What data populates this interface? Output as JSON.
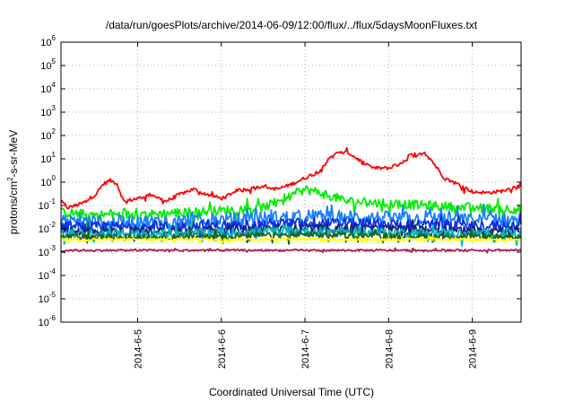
{
  "chart_data": {
    "type": "line",
    "title": "/data/run/goesPlots/archive/2014-06-09/12:00/flux/../flux/5daysMoonFluxes.txt",
    "xlabel": "Coordinated Universal Time (UTC)",
    "ylabel": "protons/cm2-s-sr-MeV",
    "ylabel_parts": {
      "pre": "protons/cm",
      "sup": "2",
      "post": "-s-sr-MeV"
    },
    "y_scale": "log",
    "ylim": [
      1e-06,
      1000000.0
    ],
    "y_ticks": [
      {
        "value": 1e-06,
        "base": "10",
        "exp": "-6"
      },
      {
        "value": 1e-05,
        "base": "10",
        "exp": "-5"
      },
      {
        "value": 0.0001,
        "base": "10",
        "exp": "-4"
      },
      {
        "value": 0.001,
        "base": "10",
        "exp": "-3"
      },
      {
        "value": 0.01,
        "base": "10",
        "exp": "-2"
      },
      {
        "value": 0.1,
        "base": "10",
        "exp": "-1"
      },
      {
        "value": 1,
        "base": "10",
        "exp": "0"
      },
      {
        "value": 10,
        "base": "10",
        "exp": "1"
      },
      {
        "value": 100,
        "base": "10",
        "exp": "2"
      },
      {
        "value": 1000,
        "base": "10",
        "exp": "3"
      },
      {
        "value": 10000,
        "base": "10",
        "exp": "4"
      },
      {
        "value": 100000,
        "base": "10",
        "exp": "5"
      },
      {
        "value": 1000000,
        "base": "10",
        "exp": "6"
      }
    ],
    "xlim": [
      "2014-06-04 02:00",
      "2014-06-09 14:00"
    ],
    "x_ticks": [
      "2014-6-5",
      "2014-6-6",
      "2014-6-7",
      "2014-6-8",
      "2014-6-9"
    ],
    "x_tick_dates": [
      "2014-06-05 00:00",
      "2014-06-06 00:00",
      "2014-06-07 00:00",
      "2014-06-08 00:00",
      "2014-06-09 00:00"
    ],
    "grid": true,
    "legend": "none",
    "series": [
      {
        "color": "#ff0000",
        "noise": 0.15,
        "x": [
          "2014-06-04 02:00",
          "2014-06-04 04:00",
          "2014-06-04 08:00",
          "2014-06-04 12:00",
          "2014-06-04 14:00",
          "2014-06-04 16:00",
          "2014-06-04 18:00",
          "2014-06-04 20:00",
          "2014-06-05 00:00",
          "2014-06-05 04:00",
          "2014-06-05 08:00",
          "2014-06-05 12:00",
          "2014-06-05 16:00",
          "2014-06-05 20:00",
          "2014-06-06 00:00",
          "2014-06-06 04:00",
          "2014-06-06 08:00",
          "2014-06-06 12:00",
          "2014-06-06 16:00",
          "2014-06-06 20:00",
          "2014-06-07 00:00",
          "2014-06-07 04:00",
          "2014-06-07 08:00",
          "2014-06-07 12:00",
          "2014-06-07 16:00",
          "2014-06-07 18:00",
          "2014-06-07 20:00",
          "2014-06-08 00:00",
          "2014-06-08 04:00",
          "2014-06-08 06:00",
          "2014-06-08 08:00",
          "2014-06-08 10:00",
          "2014-06-08 12:00",
          "2014-06-08 16:00",
          "2014-06-08 20:00",
          "2014-06-09 00:00",
          "2014-06-09 04:00",
          "2014-06-09 08:00",
          "2014-06-09 12:00",
          "2014-06-09 14:00"
        ],
        "y": [
          0.15,
          0.08,
          0.12,
          0.3,
          0.8,
          1.2,
          0.9,
          0.15,
          0.2,
          0.3,
          0.15,
          0.3,
          0.5,
          0.3,
          0.2,
          0.4,
          0.5,
          0.7,
          0.5,
          0.8,
          1.5,
          3,
          15,
          20,
          8,
          5,
          4,
          4,
          6,
          15,
          12,
          20,
          10,
          1.5,
          0.8,
          0.4,
          0.35,
          0.4,
          0.6,
          0.7
        ]
      },
      {
        "color": "#00ee00",
        "noise": 0.4,
        "x": [
          "2014-06-04 02:00",
          "2014-06-04 12:00",
          "2014-06-05 00:00",
          "2014-06-05 12:00",
          "2014-06-06 00:00",
          "2014-06-06 12:00",
          "2014-06-06 18:00",
          "2014-06-07 00:00",
          "2014-06-07 06:00",
          "2014-06-07 12:00",
          "2014-06-08 00:00",
          "2014-06-08 12:00",
          "2014-06-09 00:00",
          "2014-06-09 14:00"
        ],
        "y": [
          0.05,
          0.04,
          0.04,
          0.05,
          0.06,
          0.08,
          0.2,
          0.5,
          0.3,
          0.15,
          0.12,
          0.1,
          0.08,
          0.07
        ]
      },
      {
        "color": "#1a7fff",
        "noise": 0.55,
        "x": [
          "2014-06-04 02:00",
          "2014-06-05 00:00",
          "2014-06-06 00:00",
          "2014-06-07 00:00",
          "2014-06-08 00:00",
          "2014-06-09 00:00",
          "2014-06-09 14:00"
        ],
        "y": [
          0.02,
          0.02,
          0.025,
          0.035,
          0.03,
          0.025,
          0.025
        ]
      },
      {
        "color": "#0a2fe0",
        "noise": 0.45,
        "x": [
          "2014-06-04 02:00",
          "2014-06-05 00:00",
          "2014-06-06 00:00",
          "2014-06-07 00:00",
          "2014-06-08 00:00",
          "2014-06-09 00:00",
          "2014-06-09 14:00"
        ],
        "y": [
          0.012,
          0.012,
          0.014,
          0.018,
          0.016,
          0.014,
          0.013
        ]
      },
      {
        "color": "#1a1f7a",
        "noise": 0.35,
        "x": [
          "2014-06-04 02:00",
          "2014-06-05 00:00",
          "2014-06-06 00:00",
          "2014-06-07 00:00",
          "2014-06-08 00:00",
          "2014-06-09 00:00",
          "2014-06-09 14:00"
        ],
        "y": [
          0.008,
          0.008,
          0.009,
          0.011,
          0.01,
          0.009,
          0.009
        ]
      },
      {
        "color": "#00b8b8",
        "noise": 0.4,
        "x": [
          "2014-06-04 02:00",
          "2014-06-05 00:00",
          "2014-06-06 00:00",
          "2014-06-07 00:00",
          "2014-06-08 00:00",
          "2014-06-09 00:00",
          "2014-06-09 14:00"
        ],
        "y": [
          0.006,
          0.006,
          0.007,
          0.008,
          0.007,
          0.0065,
          0.006
        ]
      },
      {
        "color": "#1f5f1f",
        "noise": 0.25,
        "x": [
          "2014-06-04 02:00",
          "2014-06-05 00:00",
          "2014-06-06 00:00",
          "2014-06-07 00:00",
          "2014-06-08 00:00",
          "2014-06-09 00:00",
          "2014-06-09 14:00"
        ],
        "y": [
          0.0045,
          0.0045,
          0.005,
          0.0055,
          0.005,
          0.0048,
          0.0045
        ]
      },
      {
        "color": "#ffff00",
        "noise": 0.12,
        "x": [
          "2014-06-04 02:00",
          "2014-06-05 00:00",
          "2014-06-06 00:00",
          "2014-06-07 00:00",
          "2014-06-08 00:00",
          "2014-06-09 00:00",
          "2014-06-09 14:00"
        ],
        "y": [
          0.0035,
          0.0035,
          0.0035,
          0.0036,
          0.0035,
          0.0035,
          0.0035
        ]
      },
      {
        "color": "#a01e5a",
        "noise": 0.08,
        "x": [
          "2014-06-04 02:00",
          "2014-06-05 00:00",
          "2014-06-06 00:00",
          "2014-06-07 00:00",
          "2014-06-08 00:00",
          "2014-06-09 00:00",
          "2014-06-09 14:00"
        ],
        "y": [
          0.0012,
          0.0012,
          0.0012,
          0.0012,
          0.0012,
          0.0012,
          0.0012
        ]
      }
    ]
  }
}
